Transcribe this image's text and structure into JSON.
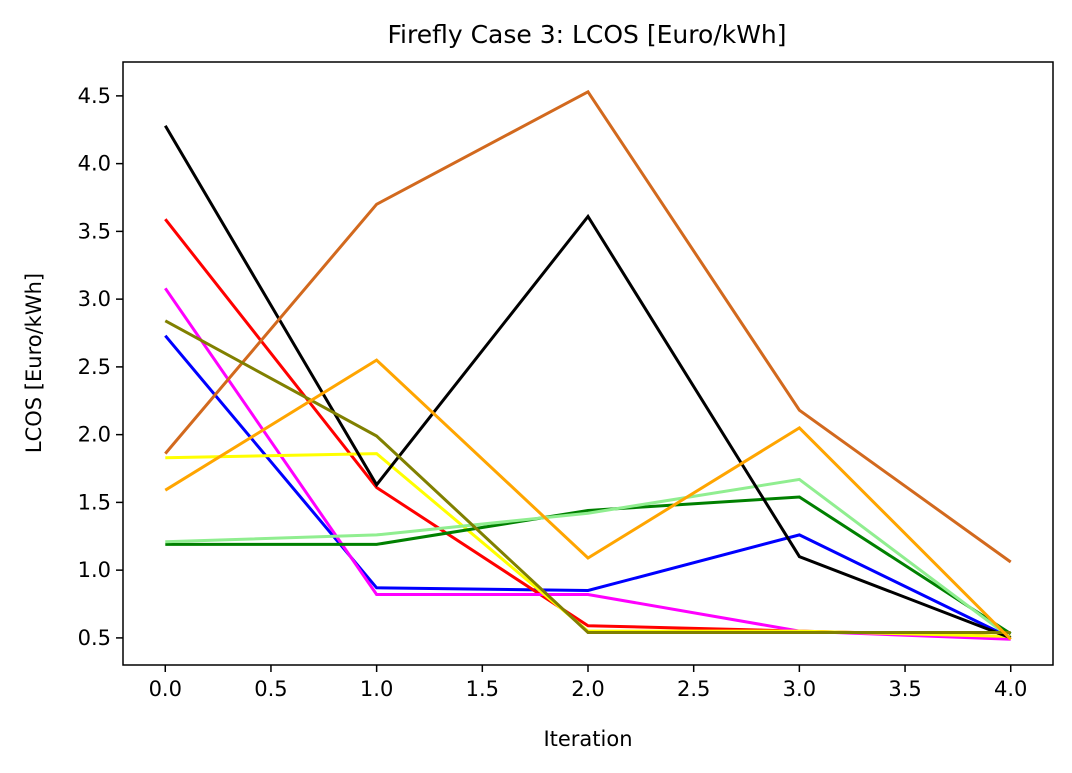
{
  "chart_data": {
    "type": "line",
    "title": "Firefly Case 3: LCOS [Euro/kWh]",
    "xlabel": "Iteration",
    "ylabel": "LCOS [Euro/kWh]",
    "xlim": [
      -0.2,
      4.2
    ],
    "ylim": [
      0.3,
      4.75
    ],
    "xticks": [
      0.0,
      0.5,
      1.0,
      1.5,
      2.0,
      2.5,
      3.0,
      3.5,
      4.0
    ],
    "xtick_labels": [
      "0.0",
      "0.5",
      "1.0",
      "1.5",
      "2.0",
      "2.5",
      "3.0",
      "3.5",
      "4.0"
    ],
    "yticks": [
      0.5,
      1.0,
      1.5,
      2.0,
      2.5,
      3.0,
      3.5,
      4.0,
      4.5
    ],
    "ytick_labels": [
      "0.5",
      "1.0",
      "1.5",
      "2.0",
      "2.5",
      "3.0",
      "3.5",
      "4.0",
      "4.5"
    ],
    "grid": false,
    "x": [
      0,
      1,
      2,
      3,
      4
    ],
    "series": [
      {
        "color": "#0000ff",
        "values": [
          2.73,
          0.87,
          0.85,
          1.26,
          0.5
        ]
      },
      {
        "color": "#ff0000",
        "values": [
          3.59,
          1.61,
          0.59,
          0.55,
          0.51
        ]
      },
      {
        "color": "#ff00ff",
        "values": [
          3.08,
          0.82,
          0.82,
          0.55,
          0.49
        ]
      },
      {
        "color": "#ffff00",
        "values": [
          1.83,
          1.86,
          0.55,
          0.55,
          0.51
        ]
      },
      {
        "color": "#008000",
        "values": [
          1.19,
          1.19,
          1.44,
          1.54,
          0.53
        ]
      },
      {
        "color": "#90ee90",
        "values": [
          1.21,
          1.26,
          1.42,
          1.67,
          0.5
        ]
      },
      {
        "color": "#000000",
        "values": [
          4.28,
          1.63,
          3.61,
          1.1,
          0.5
        ]
      },
      {
        "color": "#d2691e",
        "values": [
          1.86,
          3.7,
          4.53,
          2.18,
          1.06
        ]
      },
      {
        "color": "#808000",
        "values": [
          2.84,
          1.99,
          0.54,
          0.54,
          0.54
        ]
      },
      {
        "color": "#ffa500",
        "values": [
          1.59,
          2.55,
          1.09,
          2.05,
          0.49
        ]
      }
    ]
  }
}
